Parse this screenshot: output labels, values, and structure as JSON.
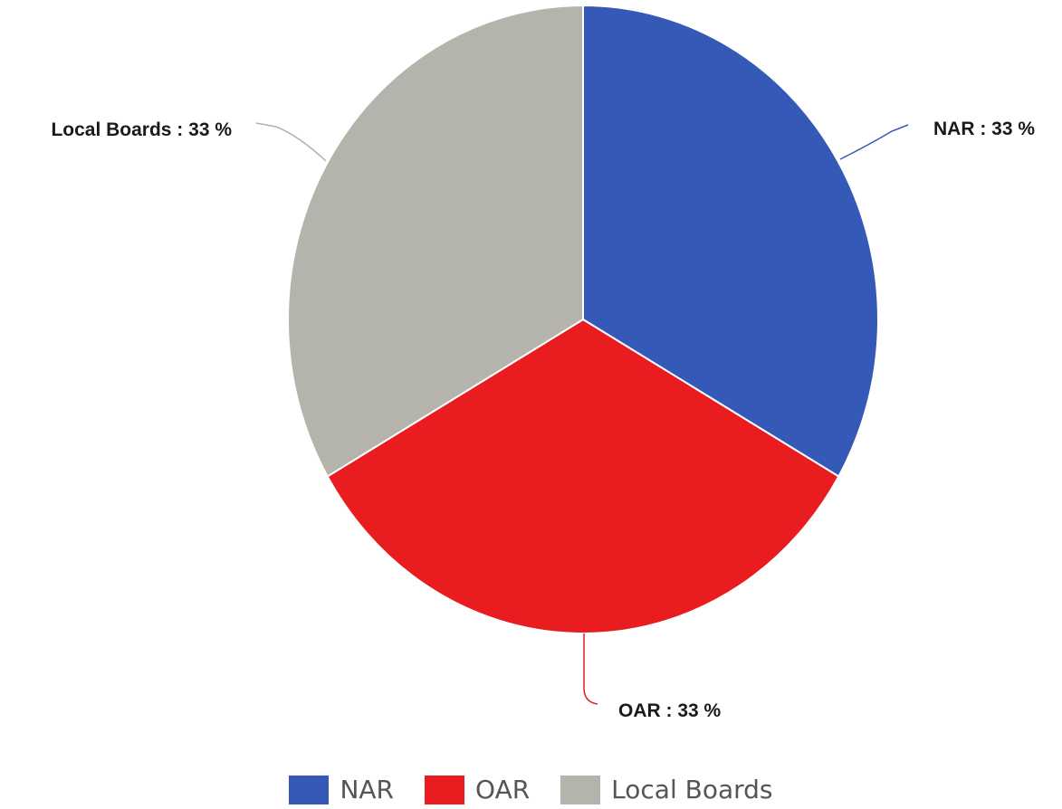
{
  "chart_data": {
    "type": "pie",
    "slices": [
      {
        "name": "NAR",
        "value": 33,
        "label": "NAR : 33 %",
        "color": "#3459b6"
      },
      {
        "name": "OAR",
        "value": 33,
        "label": "OAR : 33 %",
        "color": "#e91c1f"
      },
      {
        "name": "Local Boards",
        "value": 33,
        "label": "Local Boards : 33 %",
        "color": "#b4b3ac"
      }
    ],
    "legend": {
      "placement": "bottom",
      "entries": [
        "NAR",
        "OAR",
        "Local Boards"
      ]
    }
  }
}
